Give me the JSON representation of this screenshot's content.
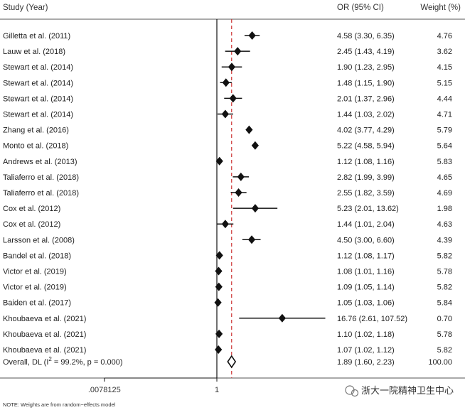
{
  "chart_data": {
    "type": "forest",
    "headers": {
      "study": "Study (Year)",
      "or_ci": "OR (95% CI)",
      "weight": "Weight (%)"
    },
    "x_scale": "log2",
    "x_ticks": [
      {
        "value": 0.0078125,
        "label": ".0078125"
      },
      {
        "value": 1,
        "label": "1"
      }
    ],
    "xlim": [
      0.0078125,
      128
    ],
    "null_line": 1,
    "pooled_line": 1.89,
    "studies": [
      {
        "study": "Gilletta et al. (2011)",
        "or": 4.58,
        "lower": 3.3,
        "upper": 6.35,
        "or_ci": "4.58 (3.30, 6.35)",
        "weight": "4.76"
      },
      {
        "study": "Lauw et al. (2018)",
        "or": 2.45,
        "lower": 1.43,
        "upper": 4.19,
        "or_ci": "2.45 (1.43, 4.19)",
        "weight": "3.62"
      },
      {
        "study": "Stewart et al. (2014)",
        "or": 1.9,
        "lower": 1.23,
        "upper": 2.95,
        "or_ci": "1.90 (1.23, 2.95)",
        "weight": "4.15"
      },
      {
        "study": "Stewart et al. (2014)",
        "or": 1.48,
        "lower": 1.15,
        "upper": 1.9,
        "or_ci": "1.48 (1.15, 1.90)",
        "weight": "5.15"
      },
      {
        "study": "Stewart et al. (2014)",
        "or": 2.01,
        "lower": 1.37,
        "upper": 2.96,
        "or_ci": "2.01 (1.37, 2.96)",
        "weight": "4.44"
      },
      {
        "study": "Stewart et al. (2014)",
        "or": 1.44,
        "lower": 1.03,
        "upper": 2.02,
        "or_ci": "1.44 (1.03, 2.02)",
        "weight": "4.71"
      },
      {
        "study": "Zhang et al. (2016)",
        "or": 4.02,
        "lower": 3.77,
        "upper": 4.29,
        "or_ci": "4.02 (3.77, 4.29)",
        "weight": "5.79"
      },
      {
        "study": "Monto et al. (2018)",
        "or": 5.22,
        "lower": 4.58,
        "upper": 5.94,
        "or_ci": "5.22 (4.58, 5.94)",
        "weight": "5.64"
      },
      {
        "study": "Andrews et al. (2013)",
        "or": 1.12,
        "lower": 1.08,
        "upper": 1.16,
        "or_ci": "1.12 (1.08, 1.16)",
        "weight": "5.83"
      },
      {
        "study": "Taliaferro et al. (2018)",
        "or": 2.82,
        "lower": 1.99,
        "upper": 3.99,
        "or_ci": "2.82 (1.99, 3.99)",
        "weight": "4.65"
      },
      {
        "study": "Taliaferro et al. (2018)",
        "or": 2.55,
        "lower": 1.82,
        "upper": 3.59,
        "or_ci": "2.55 (1.82, 3.59)",
        "weight": "4.69"
      },
      {
        "study": "Cox et al. (2012)",
        "or": 5.23,
        "lower": 2.01,
        "upper": 13.62,
        "or_ci": "5.23 (2.01, 13.62)",
        "weight": "1.98"
      },
      {
        "study": "Cox et al. (2012)",
        "or": 1.44,
        "lower": 1.01,
        "upper": 2.04,
        "or_ci": "1.44 (1.01, 2.04)",
        "weight": "4.63"
      },
      {
        "study": "Larsson et al. (2008)",
        "or": 4.5,
        "lower": 3.0,
        "upper": 6.6,
        "or_ci": "4.50 (3.00, 6.60)",
        "weight": "4.39"
      },
      {
        "study": "Bandel et al. (2018)",
        "or": 1.12,
        "lower": 1.08,
        "upper": 1.17,
        "or_ci": "1.12 (1.08, 1.17)",
        "weight": "5.82"
      },
      {
        "study": "Victor et al. (2019)",
        "or": 1.08,
        "lower": 1.01,
        "upper": 1.16,
        "or_ci": "1.08 (1.01, 1.16)",
        "weight": "5.78"
      },
      {
        "study": "Victor et al. (2019)",
        "or": 1.09,
        "lower": 1.05,
        "upper": 1.14,
        "or_ci": "1.09 (1.05, 1.14)",
        "weight": "5.82"
      },
      {
        "study": "Baiden et al. (2017)",
        "or": 1.05,
        "lower": 1.03,
        "upper": 1.06,
        "or_ci": "1.05 (1.03, 1.06)",
        "weight": "5.84"
      },
      {
        "study": "Khoubaeva et al. (2021)",
        "or": 16.76,
        "lower": 2.61,
        "upper": 107.52,
        "or_ci": "16.76 (2.61, 107.52)",
        "weight": "0.70"
      },
      {
        "study": "Khoubaeva et al. (2021)",
        "or": 1.1,
        "lower": 1.02,
        "upper": 1.18,
        "or_ci": "1.10 (1.02, 1.18)",
        "weight": "5.78"
      },
      {
        "study": "Khoubaeva et al. (2021)",
        "or": 1.07,
        "lower": 1.02,
        "upper": 1.12,
        "or_ci": "1.07 (1.02, 1.12)",
        "weight": "5.82"
      }
    ],
    "overall": {
      "label_main": "Overall, DL (I",
      "label_sup": "2",
      "label_rest": " = 99.2%, p = 0.000)",
      "or": 1.89,
      "lower": 1.6,
      "upper": 2.23,
      "or_ci": "1.89 (1.60, 2.23)",
      "weight": "100.00"
    },
    "note": "NOTE: Weights are from random−effects model"
  },
  "watermark": "浙大一院精神卫生中心",
  "colors": {
    "pooled_line": "#cc3333",
    "ink": "#111111"
  }
}
